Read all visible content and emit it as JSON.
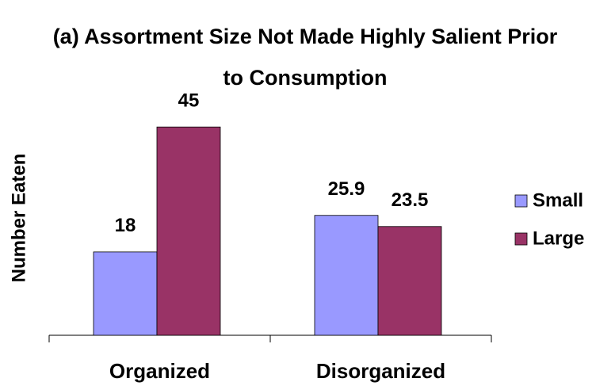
{
  "chart_data": {
    "type": "bar",
    "title": "(a) Assortment Size Not Made Highly Salient Prior to Consumption",
    "y_label": "Number Eaten",
    "categories": [
      "Organized",
      "Disorganized"
    ],
    "series": [
      {
        "name": "Small",
        "color": "#9999ff",
        "values": [
          18,
          25.9
        ]
      },
      {
        "name": "Large",
        "color": "#993366",
        "values": [
          45,
          23.5
        ]
      }
    ],
    "ylim": [
      0,
      50
    ],
    "legend": "right"
  }
}
